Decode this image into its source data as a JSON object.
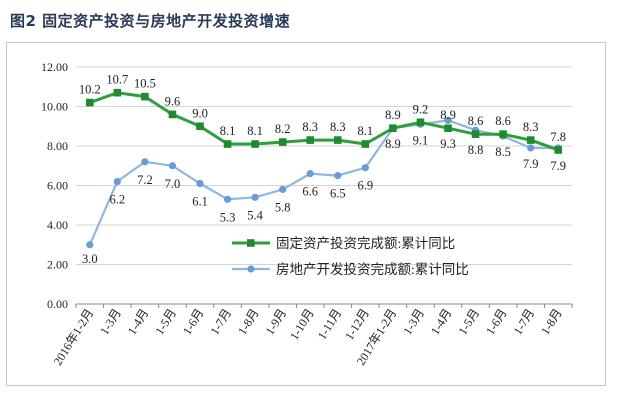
{
  "figure": {
    "title": "图2  固定资产投资与房地产开发投资增速"
  },
  "chart_data": {
    "type": "line",
    "categories": [
      "2016年1-2月",
      "1-3月",
      "1-4月",
      "1-5月",
      "1-6月",
      "1-7月",
      "1-8月",
      "1-9月",
      "1-10月",
      "1-11月",
      "1-12月",
      "2017年1-2月",
      "1-3月",
      "1-4月",
      "1-5月",
      "1-6月",
      "1-7月",
      "1-8月"
    ],
    "series": [
      {
        "name": "固定资产投资完成额:累计同比",
        "color": "#2e9e3e",
        "marker": "square",
        "values": [
          10.2,
          10.7,
          10.5,
          9.6,
          9.0,
          8.1,
          8.1,
          8.2,
          8.3,
          8.3,
          8.1,
          8.9,
          9.2,
          8.9,
          8.6,
          8.6,
          8.3,
          7.8
        ]
      },
      {
        "name": "房地产开发投资完成额:累计同比",
        "color": "#8db8e0",
        "marker": "circle",
        "values": [
          3.0,
          6.2,
          7.2,
          7.0,
          6.1,
          5.3,
          5.4,
          5.8,
          6.6,
          6.5,
          6.9,
          8.9,
          9.1,
          9.3,
          8.8,
          8.5,
          7.9,
          7.9
        ]
      }
    ],
    "y_ticks": [
      "0.00",
      "2.00",
      "4.00",
      "6.00",
      "8.00",
      "10.00",
      "12.00"
    ],
    "ylim": [
      0,
      12
    ],
    "grid": true,
    "legend": "center-right"
  }
}
